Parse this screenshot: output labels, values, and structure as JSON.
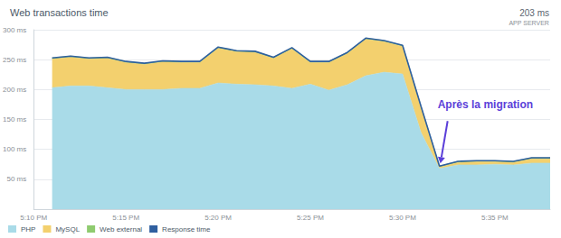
{
  "chart_data": {
    "type": "area",
    "title": "Web transactions time",
    "subtitle": "203 ms",
    "annotations": [
      "APP SERVER",
      "Après la migration"
    ],
    "categories": [
      "5:10 PM",
      null,
      null,
      null,
      null,
      "5:15 PM",
      null,
      null,
      null,
      null,
      "5:20 PM",
      null,
      null,
      null,
      null,
      "5:25 PM",
      null,
      null,
      null,
      null,
      "5:30 PM",
      null,
      null,
      null,
      null,
      "5:35 PM",
      null,
      null,
      null
    ],
    "series": [
      {
        "name": "PHP",
        "type": "area",
        "color": "#a9dbe8",
        "values": [
          null,
          203,
          206,
          206,
          203,
          200,
          200,
          200,
          202,
          202,
          211,
          209,
          208,
          206,
          202,
          209,
          199,
          208,
          223,
          229,
          226,
          128,
          68,
          74,
          74,
          75,
          74,
          77,
          77
        ]
      },
      {
        "name": "MySQL",
        "type": "area",
        "color": "#f3d06e",
        "values": [
          null,
          48,
          48,
          45,
          49,
          45,
          42,
          46,
          43,
          43,
          58,
          54,
          54,
          46,
          66,
          36,
          46,
          52,
          61,
          51,
          46,
          42,
          2,
          4,
          5,
          4,
          4,
          7,
          7
        ]
      },
      {
        "name": "Web external",
        "type": "area",
        "color": "#8fcb6f",
        "values": [
          null,
          2,
          2,
          2,
          2,
          2,
          2,
          2,
          2,
          2,
          2,
          2,
          2,
          2,
          2,
          2,
          2,
          2,
          2,
          2,
          2,
          2,
          2,
          2,
          2,
          2,
          2,
          2,
          2
        ]
      },
      {
        "name": "Response time",
        "type": "line",
        "color": "#2f5f9f",
        "values": [
          null,
          253,
          256,
          253,
          254,
          247,
          244,
          248,
          247,
          247,
          271,
          265,
          264,
          254,
          270,
          247,
          247,
          262,
          286,
          282,
          274,
          172,
          72,
          80,
          81,
          81,
          80,
          86,
          86
        ]
      }
    ],
    "stacked": true,
    "ylim": [
      0,
      300
    ],
    "yticks": [
      {
        "value": 50,
        "label": "50 ms"
      },
      {
        "value": 100,
        "label": "100 ms"
      },
      {
        "value": 150,
        "label": "150 ms"
      },
      {
        "value": 200,
        "label": "200 ms"
      },
      {
        "value": 250,
        "label": "250 ms"
      },
      {
        "value": 300,
        "label": "300 ms"
      }
    ],
    "grid": true,
    "legend": "bottom-left"
  }
}
